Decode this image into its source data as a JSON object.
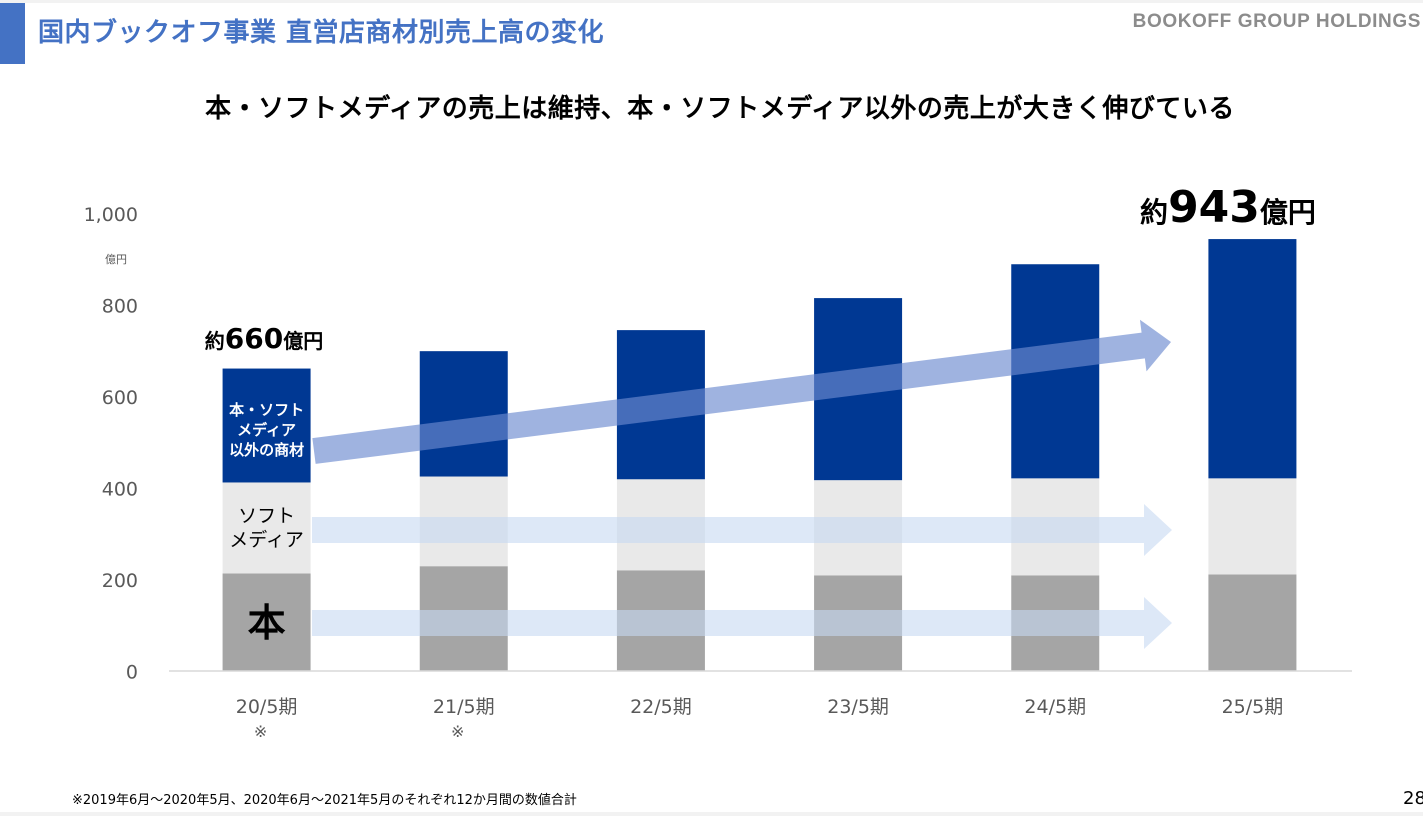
{
  "header": {
    "title": "国内ブックオフ事業 直営店商材別売上高の変化",
    "brand": "BOOKOFF GROUP HOLDINGS"
  },
  "headline": "本・ソフトメディアの売上は維持、本・ソフトメディア以外の売上が大きく伸びている",
  "colors": {
    "accent": "#4472c4",
    "other_goods": "#003893",
    "soft_media": "#e9e9e9",
    "books": "#a5a5a5",
    "growth_arrow": "#7f9ad6",
    "flat_arrow": "#dae5f6"
  },
  "chart_data": {
    "type": "bar",
    "stacked": true,
    "title": "",
    "xlabel": "",
    "ylabel": "億円",
    "ylim": [
      0,
      1000
    ],
    "yticks": [
      0,
      200,
      400,
      600,
      800,
      1000
    ],
    "ytick_labels": [
      "0",
      "200",
      "400",
      "600",
      "800",
      "1,000"
    ],
    "grid": false,
    "legend": "none (inline segment labels on first bar)",
    "categories": [
      "20/5期",
      "21/5期",
      "22/5期",
      "23/5期",
      "24/5期",
      "25/5期"
    ],
    "category_notes": [
      "※",
      "※",
      "",
      "",
      "",
      ""
    ],
    "series": [
      {
        "name": "本",
        "label": "本",
        "color": "#a5a5a5",
        "values": [
          212,
          228,
          219,
          208,
          208,
          210
        ]
      },
      {
        "name": "ソフトメディア",
        "label": "ソフト\nメディア",
        "color": "#e9e9e9",
        "values": [
          199,
          196,
          199,
          208,
          212,
          210
        ]
      },
      {
        "name": "本・ソフトメディア以外の商材",
        "label": "本・ソフト\nメディア\n以外の商材",
        "color": "#003893",
        "values": [
          249,
          274,
          326,
          398,
          468,
          523
        ]
      }
    ],
    "totals": [
      660,
      698,
      744,
      814,
      888,
      943
    ],
    "annotations": [
      {
        "text_prefix": "約",
        "text_value": "660",
        "text_suffix": "億円",
        "category": "20/5期"
      },
      {
        "text_prefix": "約",
        "text_value": "943",
        "text_suffix": "億円",
        "category": "25/5期"
      },
      {
        "type": "arrow",
        "description": "growth arrow across 本・ソフトメディア以外の商材",
        "from_value": 480,
        "to_value": 720
      },
      {
        "type": "arrow",
        "description": "flat arrow across ソフトメディア",
        "from_value": 305,
        "to_value": 305
      },
      {
        "type": "arrow",
        "description": "flat arrow across 本",
        "from_value": 100,
        "to_value": 100
      }
    ]
  },
  "footnote": "※2019年6月～2020年5月、2020年6月～2021年5月のそれぞれ12か月間の数値合計",
  "page_number": "28"
}
